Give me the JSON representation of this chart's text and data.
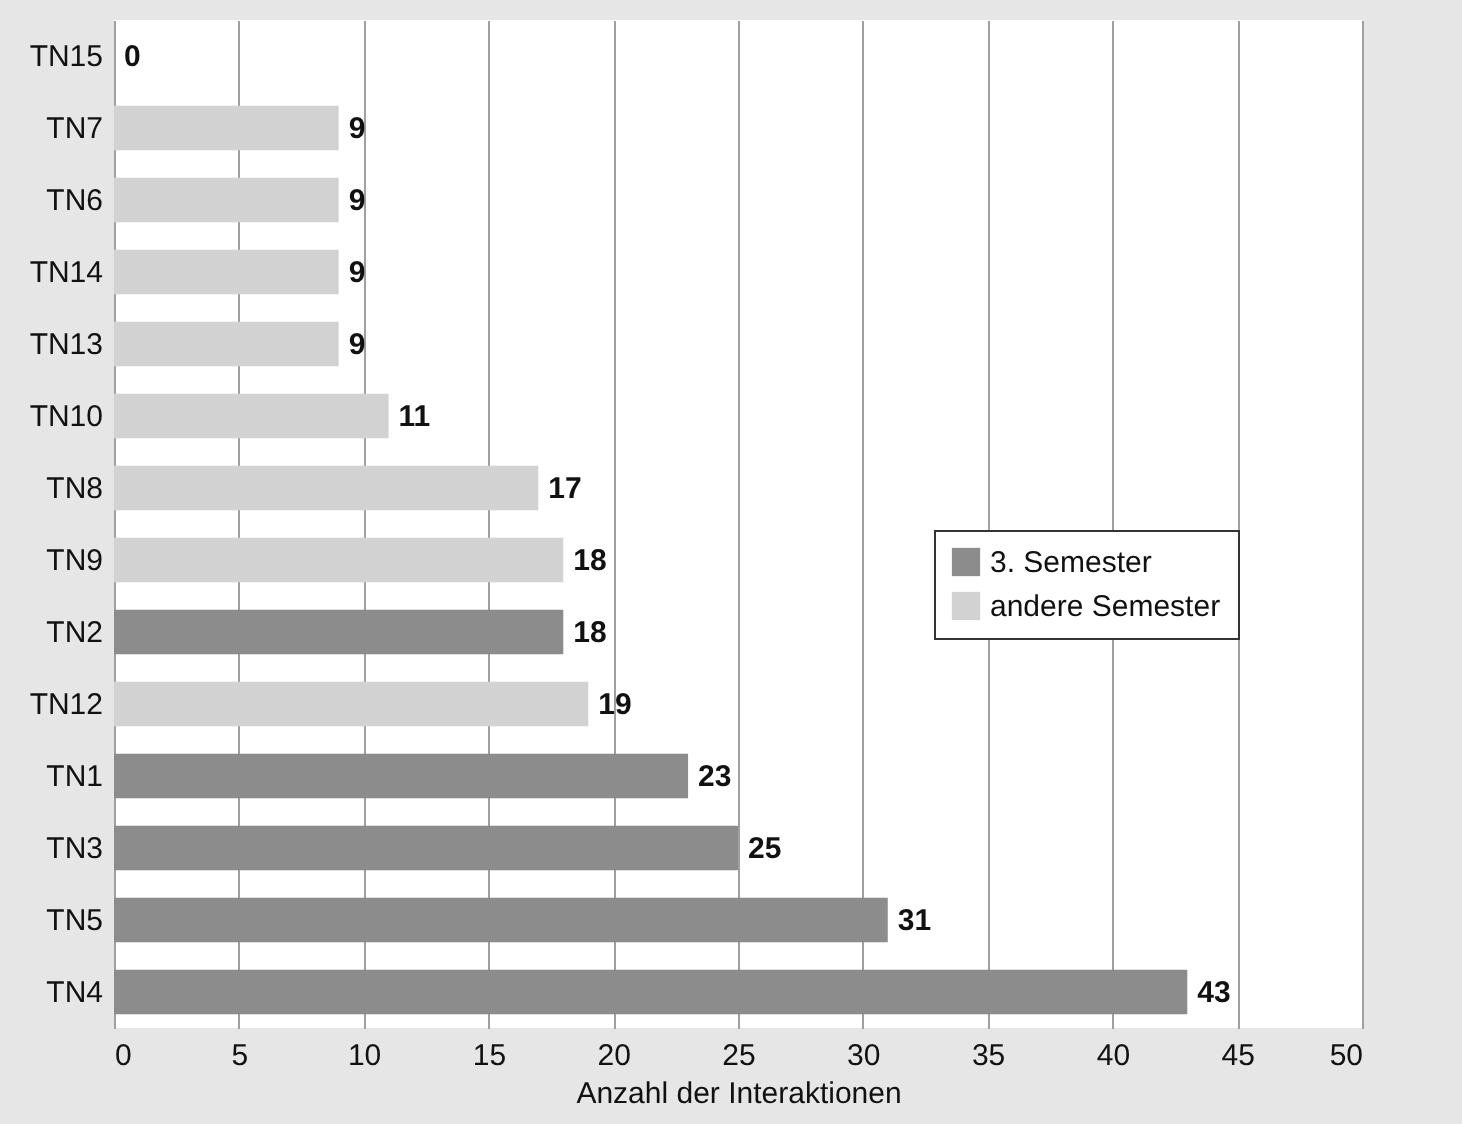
{
  "chart_data": {
    "type": "bar",
    "orientation": "horizontal",
    "xlabel": "Anzahl der Interaktionen",
    "categories": [
      "TN15",
      "TN7",
      "TN6",
      "TN14",
      "TN13",
      "TN10",
      "TN8",
      "TN9",
      "TN2",
      "TN12",
      "TN1",
      "TN3",
      "TN5",
      "TN4"
    ],
    "series": [
      {
        "name": "3. Semester",
        "color": "#8c8c8c",
        "values": [
          null,
          null,
          null,
          null,
          null,
          null,
          null,
          null,
          18,
          null,
          23,
          25,
          31,
          43
        ]
      },
      {
        "name": "andere Semester",
        "color": "#d2d2d2",
        "values": [
          0,
          9,
          9,
          9,
          9,
          11,
          17,
          18,
          null,
          19,
          null,
          null,
          null,
          null
        ]
      }
    ],
    "xlim": [
      0,
      50
    ],
    "xticks": [
      0,
      5,
      10,
      15,
      20,
      25,
      30,
      35,
      40,
      45,
      50
    ],
    "grid": "x",
    "legend": "right",
    "data_labels": true
  }
}
